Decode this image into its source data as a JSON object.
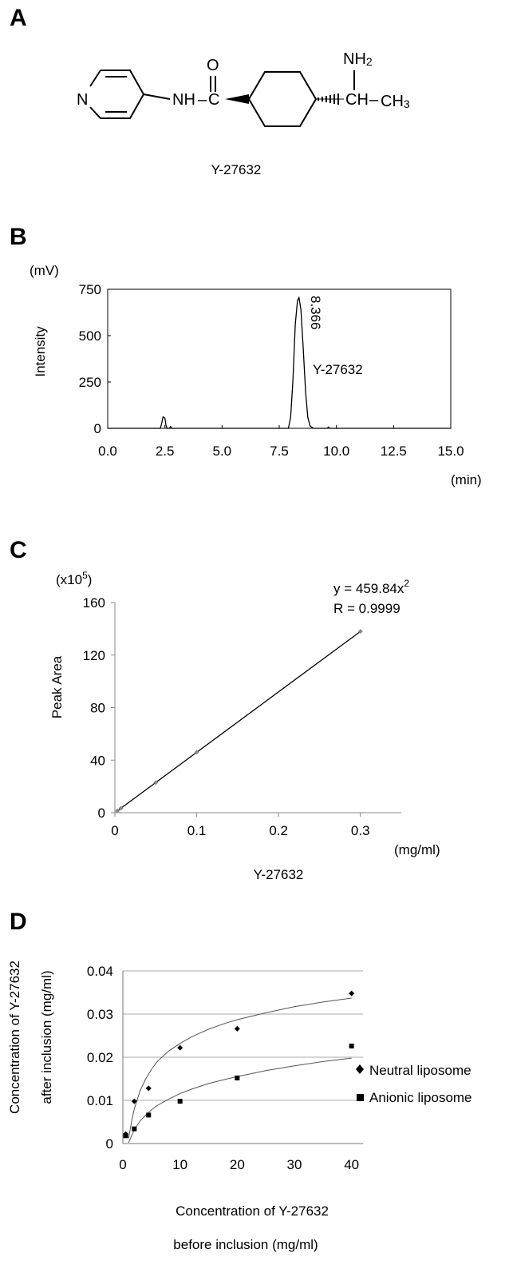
{
  "panel_labels": {
    "a": "A",
    "b": "B",
    "c": "C",
    "d": "D"
  },
  "panel_a": {
    "compound": "Y-27632",
    "atoms": {
      "n_ring": "N",
      "nh": "NH",
      "dash": "–",
      "c": "C",
      "o": "O",
      "nh2_n": "NH",
      "nh2_sub": "2",
      "ch": "CH",
      "ch3_c": "CH",
      "ch3_sub": "3"
    }
  },
  "chart_data": [
    {
      "panel": "B",
      "type": "line",
      "unit_y": "(mV)",
      "unit_x": "(min)",
      "xlabel": "",
      "ylabel": "Intensity",
      "xlim": [
        0,
        15
      ],
      "ylim": [
        0,
        750
      ],
      "x_ticks": [
        "0.0",
        "2.5",
        "5.0",
        "7.5",
        "10.0",
        "12.5",
        "15.0"
      ],
      "y_ticks": [
        "0",
        "250",
        "500",
        "750"
      ],
      "series": [
        {
          "x": [
            0,
            2.2,
            2.3,
            2.35,
            2.42,
            2.5,
            2.55,
            2.6,
            2.7,
            2.75,
            2.8,
            2.85,
            3.0,
            7.9,
            8.0,
            8.1,
            8.2,
            8.3,
            8.366,
            8.45,
            8.55,
            8.65,
            8.75,
            8.85,
            9.0,
            9.6,
            9.65,
            9.7,
            9.8,
            15
          ],
          "y": [
            0,
            0,
            0,
            22,
            62,
            55,
            15,
            0,
            0,
            10,
            0,
            0,
            0,
            0,
            60,
            260,
            560,
            690,
            705,
            640,
            430,
            200,
            60,
            12,
            0,
            0,
            7,
            0,
            0,
            0
          ]
        }
      ],
      "annotations": [
        {
          "text": "8.366",
          "x": 8.366
        },
        {
          "text": "Y-27632"
        }
      ]
    },
    {
      "panel": "C",
      "type": "scatter",
      "unit_y": "(x10",
      "unit_y_exp": "5",
      "unit_y_close": ")",
      "unit_x": "(mg/ml)",
      "xlabel": "Y-27632",
      "ylabel": "Peak Area",
      "xlim": [
        0,
        0.35
      ],
      "ylim": [
        0,
        160
      ],
      "x_ticks": [
        "0",
        "0.1",
        "0.2",
        "0.3"
      ],
      "y_ticks": [
        "0",
        "40",
        "80",
        "120",
        "160"
      ],
      "series": [
        {
          "x": [
            0.003,
            0.0075,
            0.05,
            0.1,
            0.3
          ],
          "y": [
            1.4,
            3.4,
            23,
            46,
            138
          ]
        }
      ],
      "fit": {
        "slope": 459.84,
        "x_range": [
          0.003,
          0.3
        ]
      },
      "equation": {
        "text": "y = 459.84x",
        "sup": "2",
        "r_text": "R  = 0.9999"
      }
    },
    {
      "panel": "D",
      "type": "scatter",
      "xlabel_line1": "Concentration of Y-27632",
      "xlabel_line2": "before inclusion (mg/ml)",
      "ylabel_line1": "Concentration of Y-27632",
      "ylabel_line2": "after inclusion (mg/ml)",
      "xlim": [
        0,
        42
      ],
      "ylim": [
        0,
        0.04
      ],
      "x_ticks": [
        "0",
        "10",
        "20",
        "30",
        "40"
      ],
      "y_ticks": [
        "0",
        "0.01",
        "0.02",
        "0.03",
        "0.04"
      ],
      "grid": "horizontal",
      "legend": "right",
      "series": [
        {
          "name": "Neutral liposome",
          "marker": "diamond",
          "x": [
            0.5,
            2,
            4.5,
            10,
            20,
            40
          ],
          "y": [
            0.0022,
            0.0098,
            0.0128,
            0.0222,
            0.0266,
            0.0348
          ],
          "fit_curve": {
            "x": [
              1,
              1.5,
              2,
              3,
              4,
              5,
              6,
              8,
              10,
              12,
              15,
              18,
              20,
              25,
              30,
              35,
              40
            ],
            "y": [
              0.0012,
              0.005,
              0.008,
              0.0122,
              0.015,
              0.0172,
              0.019,
              0.0214,
              0.0232,
              0.0247,
              0.0265,
              0.0279,
              0.0287,
              0.0303,
              0.0317,
              0.0328,
              0.0337
            ]
          }
        },
        {
          "name": "Anionic liposome",
          "marker": "square",
          "x": [
            0.5,
            2,
            4.5,
            10,
            20,
            40
          ],
          "y": [
            0.0018,
            0.0034,
            0.0066,
            0.0098,
            0.0152,
            0.0226
          ],
          "fit_curve": {
            "x": [
              1,
              2,
              3,
              4,
              5,
              6,
              8,
              10,
              12,
              15,
              18,
              20,
              25,
              30,
              35,
              40
            ],
            "y": [
              0.0002,
              0.0032,
              0.0052,
              0.0066,
              0.0078,
              0.0088,
              0.0103,
              0.0116,
              0.0126,
              0.0139,
              0.0149,
              0.0155,
              0.0169,
              0.018,
              0.019,
              0.0198
            ]
          }
        }
      ]
    }
  ]
}
